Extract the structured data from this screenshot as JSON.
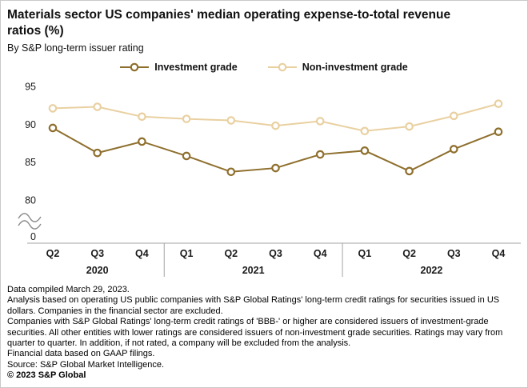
{
  "title": "Materials sector US companies' median operating expense-to-total revenue ratios (%)",
  "subtitle": "By S&P long-term issuer rating",
  "legend": [
    {
      "label": "Investment grade",
      "color": "#8e6f2d"
    },
    {
      "label": "Non-investment grade",
      "color": "#e9d0a1"
    }
  ],
  "chart_data": {
    "type": "line",
    "categories": [
      "Q2",
      "Q3",
      "Q4",
      "Q1",
      "Q2",
      "Q3",
      "Q4",
      "Q1",
      "Q2",
      "Q3",
      "Q4"
    ],
    "year_groups": [
      {
        "label": "2020",
        "count": 3
      },
      {
        "label": "2021",
        "count": 4
      },
      {
        "label": "2022",
        "count": 4
      }
    ],
    "series": [
      {
        "name": "Investment grade",
        "color": "#8e6f2d",
        "values": [
          89.5,
          86.2,
          87.7,
          85.8,
          83.7,
          84.2,
          86.0,
          86.5,
          83.8,
          86.7,
          89.0
        ]
      },
      {
        "name": "Non-investment grade",
        "color": "#e9d0a1",
        "values": [
          92.1,
          92.3,
          91.0,
          90.7,
          90.5,
          89.8,
          90.4,
          89.1,
          89.7,
          91.1,
          92.7
        ]
      }
    ],
    "y_ticks": [
      95,
      90,
      85,
      80
    ],
    "y_zero_label": "0",
    "axis_break": true,
    "ylim": [
      80,
      95
    ],
    "grid": false,
    "legend_position": "top-center"
  },
  "footnotes": [
    "Data compiled March 29, 2023.",
    "Analysis based on operating US public companies with S&P Global Ratings' long-term credit ratings for securities issued in US dollars. Companies in the financial sector are excluded.",
    "Companies with S&P Global Ratings' long-term credit ratings of 'BBB-' or higher are considered issuers of investment-grade securities. All other entities with lower ratings are considered issuers of non-investment grade securities. Ratings may vary from quarter to quarter. In addition, if not rated, a company will be excluded from the analysis.",
    "Financial data based on GAAP filings.",
    "Source: S&P Global Market Intelligence."
  ],
  "copyright": "© 2023 S&P Global"
}
